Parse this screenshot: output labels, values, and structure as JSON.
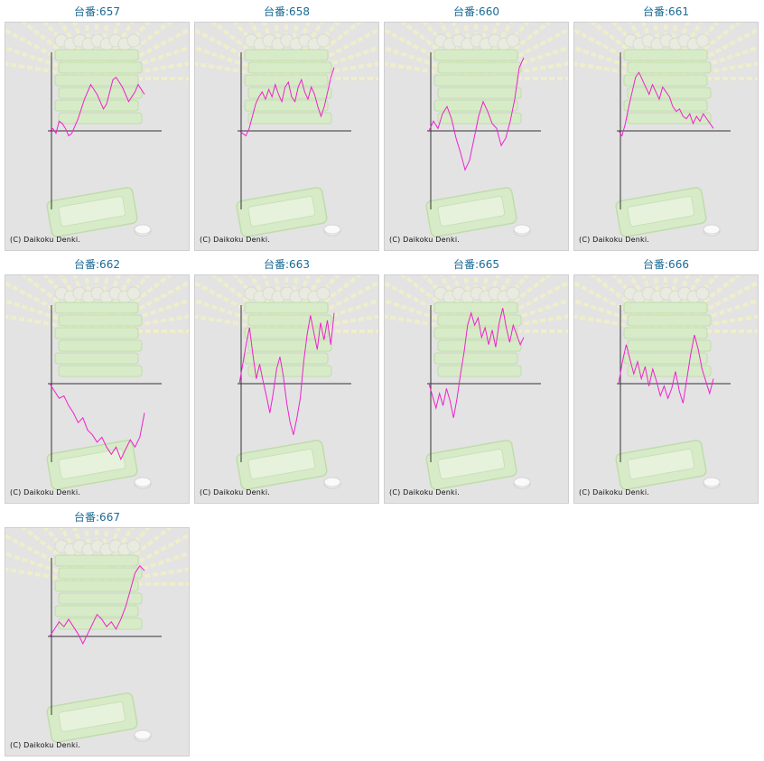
{
  "copyright": "(C) Daikoku Denki.",
  "colors": {
    "line": "#ee22cc",
    "axis": "#333333",
    "title": "#1a6a94",
    "panel_bg": "#e3e3e3"
  },
  "chart_data": [
    {
      "type": "line",
      "title": "台番:657",
      "values": [
        0,
        0.1,
        -0.1,
        0.4,
        0.3,
        0.1,
        -0.2,
        -0.1,
        0.2,
        0.5,
        0.9,
        1.3,
        1.6,
        1.9,
        1.7,
        1.5,
        1.2,
        0.9,
        1.1,
        1.6,
        2.1,
        2.2,
        2.0,
        1.8,
        1.5,
        1.2,
        1.4,
        1.6,
        1.9,
        1.7,
        1.5
      ]
    },
    {
      "type": "line",
      "title": "台番:658",
      "values": [
        0,
        -0.1,
        -0.2,
        0.1,
        0.6,
        1.1,
        1.4,
        1.6,
        1.3,
        1.7,
        1.4,
        1.9,
        1.5,
        1.2,
        1.8,
        2.0,
        1.4,
        1.2,
        1.8,
        2.1,
        1.6,
        1.3,
        1.8,
        1.5,
        1.0,
        0.6,
        1.0,
        1.6,
        2.2,
        2.6
      ]
    },
    {
      "type": "line",
      "title": "台番:660",
      "values": [
        0,
        0.4,
        0.1,
        0.7,
        1.0,
        0.5,
        -0.3,
        -0.9,
        -1.6,
        -1.2,
        -0.3,
        0.6,
        1.2,
        0.8,
        0.3,
        0.1,
        -0.6,
        -0.3,
        0.4,
        1.3,
        2.6,
        3.0
      ]
    },
    {
      "type": "line",
      "title": "台番:661",
      "values": [
        0,
        -0.2,
        0.3,
        1.0,
        1.6,
        2.2,
        2.4,
        2.1,
        1.8,
        1.5,
        1.9,
        1.6,
        1.3,
        1.8,
        1.6,
        1.4,
        1.0,
        0.8,
        0.9,
        0.6,
        0.5,
        0.7,
        0.3,
        0.6,
        0.4,
        0.7,
        0.5,
        0.3,
        0.1
      ]
    },
    {
      "type": "line",
      "title": "台番:662",
      "values": [
        0,
        -0.3,
        -0.6,
        -0.5,
        -0.9,
        -1.2,
        -1.6,
        -1.4,
        -1.9,
        -2.1,
        -2.4,
        -2.2,
        -2.6,
        -2.9,
        -2.6,
        -3.1,
        -2.7,
        -2.3,
        -2.6,
        -2.2,
        -1.2
      ]
    },
    {
      "type": "line",
      "title": "台番:663",
      "values": [
        0,
        0.8,
        1.6,
        2.3,
        1.2,
        0.2,
        0.8,
        0.1,
        -0.5,
        -1.2,
        -0.4,
        0.6,
        1.1,
        0.3,
        -0.8,
        -1.6,
        -2.1,
        -1.4,
        -0.6,
        0.9,
        2.0,
        2.8,
        2.1,
        1.4,
        2.5,
        1.8,
        2.6,
        1.6,
        2.9
      ]
    },
    {
      "type": "line",
      "title": "台番:665",
      "values": [
        0,
        -0.5,
        -1.0,
        -0.4,
        -0.9,
        -0.2,
        -0.7,
        -1.4,
        -0.6,
        0.4,
        1.3,
        2.4,
        2.9,
        2.4,
        2.7,
        1.9,
        2.3,
        1.6,
        2.2,
        1.5,
        2.5,
        3.1,
        2.3,
        1.7,
        2.4,
        2.0,
        1.6,
        1.9
      ]
    },
    {
      "type": "line",
      "title": "台番:666",
      "values": [
        0,
        0.9,
        1.6,
        1.0,
        0.4,
        0.9,
        0.2,
        0.7,
        -0.1,
        0.6,
        0.1,
        -0.5,
        -0.1,
        -0.6,
        -0.2,
        0.5,
        -0.3,
        -0.8,
        0.2,
        1.2,
        2.0,
        1.4,
        0.6,
        0.1,
        -0.4,
        0.2
      ]
    },
    {
      "type": "line",
      "title": "台番:667",
      "values": [
        0,
        0.3,
        0.6,
        0.4,
        0.7,
        0.4,
        0.1,
        -0.3,
        0.1,
        0.5,
        0.9,
        0.7,
        0.4,
        0.6,
        0.3,
        0.7,
        1.2,
        1.9,
        2.6,
        2.9,
        2.7
      ]
    }
  ]
}
